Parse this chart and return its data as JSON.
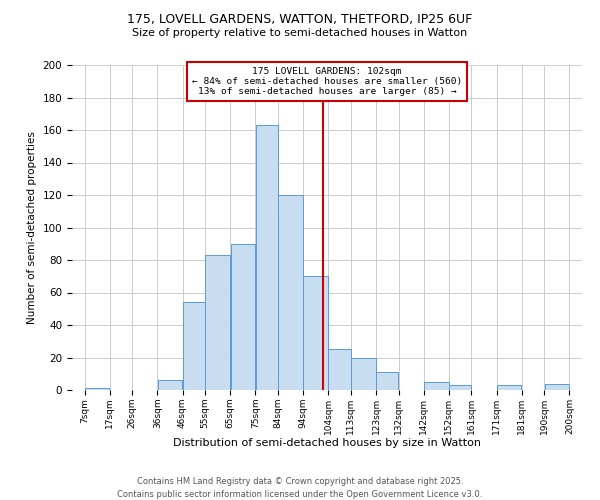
{
  "title1": "175, LOVELL GARDENS, WATTON, THETFORD, IP25 6UF",
  "title2": "Size of property relative to semi-detached houses in Watton",
  "xlabel": "Distribution of semi-detached houses by size in Watton",
  "ylabel": "Number of semi-detached properties",
  "bin_labels": [
    "7sqm",
    "17sqm",
    "26sqm",
    "36sqm",
    "46sqm",
    "55sqm",
    "65sqm",
    "75sqm",
    "84sqm",
    "94sqm",
    "104sqm",
    "113sqm",
    "123sqm",
    "132sqm",
    "142sqm",
    "152sqm",
    "161sqm",
    "171sqm",
    "181sqm",
    "190sqm",
    "200sqm"
  ],
  "bin_edges": [
    7,
    17,
    26,
    36,
    46,
    55,
    65,
    75,
    84,
    94,
    104,
    113,
    123,
    132,
    142,
    152,
    161,
    171,
    181,
    190,
    200
  ],
  "counts": [
    1,
    0,
    0,
    6,
    54,
    83,
    90,
    163,
    120,
    70,
    25,
    20,
    11,
    0,
    5,
    3,
    0,
    3,
    0,
    4
  ],
  "property_value": 102,
  "bar_fill_color": "#c9ddf0",
  "bar_edge_color": "#5b9bd5",
  "vline_color": "#cc0000",
  "grid_color": "#cccccc",
  "background_color": "#ffffff",
  "annotation_title": "175 LOVELL GARDENS: 102sqm",
  "annotation_line1": "← 84% of semi-detached houses are smaller (560)",
  "annotation_line2": "13% of semi-detached houses are larger (85) →",
  "footer1": "Contains HM Land Registry data © Crown copyright and database right 2025.",
  "footer2": "Contains public sector information licensed under the Open Government Licence v3.0.",
  "ylim": [
    0,
    200
  ],
  "yticks": [
    0,
    20,
    40,
    60,
    80,
    100,
    120,
    140,
    160,
    180,
    200
  ]
}
